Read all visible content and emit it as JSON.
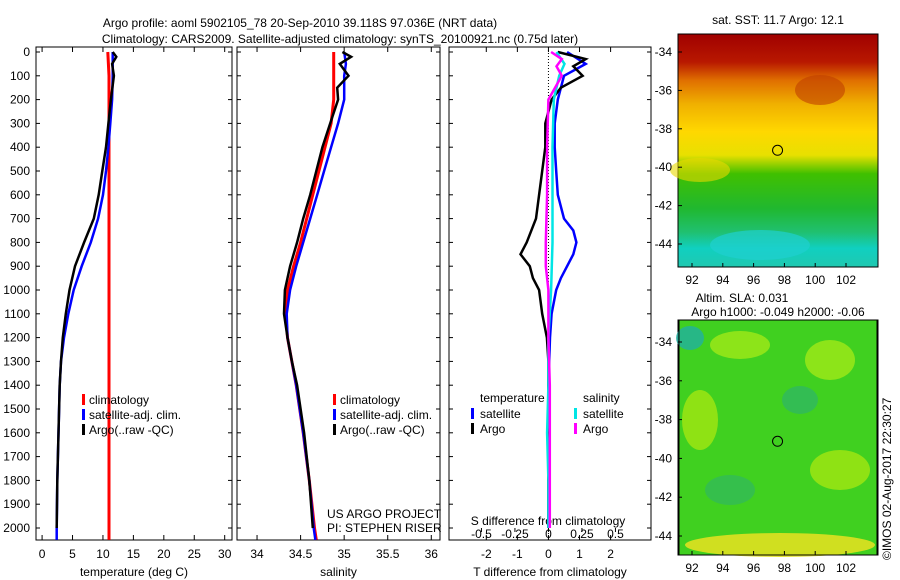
{
  "title_line1": "Argo profile: aoml 5902105_78 20-Sep-2010 39.118S 97.036E (NRT data)",
  "title_line2": "Climatology: CARS2009. Satellite-adjusted climatology: synTS_20100921.nc (0.75d later)",
  "project_line1": "US ARGO PROJECT",
  "project_line2": "PI: STEPHEN RISER",
  "credit": "©IMOS 02-Aug-2017 22:30:27",
  "colors": {
    "climatology": "#ff0000",
    "satellite": "#0000ff",
    "argo": "#000000",
    "sat_salinity": "#00e5e5",
    "argo_salinity": "#ff00ff"
  },
  "chart_data": [
    {
      "type": "line",
      "id": "temperature",
      "xlabel": "temperature (deg C)",
      "ylabel": "",
      "xlim": [
        -1,
        31.2
      ],
      "ylim": [
        2050,
        0
      ],
      "xticks": [
        "0",
        "5",
        "10",
        "15",
        "20",
        "25",
        "30"
      ],
      "xtick_values": [
        0,
        5,
        10,
        15,
        20,
        25,
        30
      ],
      "yticks": [
        "0",
        "100",
        "200",
        "300",
        "400",
        "500",
        "600",
        "700",
        "800",
        "900",
        "1000",
        "1100",
        "1200",
        "1300",
        "1400",
        "1500",
        "1600",
        "1700",
        "1800",
        "1900",
        "2000"
      ],
      "ytick_values": [
        0,
        100,
        200,
        300,
        400,
        500,
        600,
        700,
        800,
        900,
        1000,
        1100,
        1200,
        1300,
        1400,
        1500,
        1600,
        1700,
        1800,
        1900,
        2000
      ],
      "legend": [
        "climatology",
        "satellite-adj. clim.",
        "Argo(..raw -QC)"
      ],
      "series": [
        {
          "name": "climatology",
          "color": "#ff0000",
          "depth": [
            0,
            100,
            200,
            2050
          ],
          "values": [
            10.8,
            11.0,
            11.0,
            11.0
          ]
        },
        {
          "name": "satellite-adj. clim.",
          "color": "#0000ff",
          "depth": [
            0,
            100,
            200,
            300,
            400,
            500,
            600,
            700,
            800,
            900,
            1000,
            1100,
            1200,
            1300,
            1400,
            1600,
            1800,
            2000,
            2050
          ],
          "values": [
            11.6,
            11.6,
            11.5,
            11.2,
            10.9,
            10.5,
            10.0,
            9.2,
            8.0,
            6.5,
            5.2,
            4.3,
            3.6,
            3.1,
            2.9,
            2.7,
            2.5,
            2.4,
            2.4
          ]
        },
        {
          "name": "Argo(..raw -QC)",
          "color": "#000000",
          "depth": [
            0,
            20,
            50,
            100,
            200,
            300,
            400,
            500,
            600,
            700,
            800,
            900,
            1000,
            1100,
            1200,
            1300,
            1400,
            1600,
            1800,
            2000
          ],
          "values": [
            11.6,
            12.2,
            11.5,
            11.8,
            11.3,
            10.9,
            10.5,
            9.9,
            9.3,
            8.5,
            6.9,
            5.4,
            4.5,
            3.9,
            3.4,
            3.1,
            2.9,
            2.7,
            2.5,
            2.4
          ]
        }
      ]
    },
    {
      "type": "line",
      "id": "salinity",
      "xlabel": "salinity",
      "xlim": [
        33.77,
        36.1
      ],
      "ylim": [
        2050,
        0
      ],
      "xticks": [
        "34",
        "34.5",
        "35",
        "35.5",
        "36"
      ],
      "xtick_values": [
        34,
        34.5,
        35,
        35.5,
        36
      ],
      "legend": [
        "climatology",
        "satellite-adj. clim.",
        "Argo(..raw -QC)"
      ],
      "series": [
        {
          "name": "climatology",
          "color": "#ff0000",
          "depth": [
            0,
            200,
            300,
            400,
            500,
            600,
            700,
            800,
            900,
            1000,
            1100,
            1200,
            1400,
            1600,
            1800,
            2000,
            2050
          ],
          "values": [
            34.88,
            34.88,
            34.85,
            34.78,
            34.71,
            34.64,
            34.57,
            34.5,
            34.42,
            34.35,
            34.33,
            34.35,
            34.45,
            34.53,
            34.6,
            34.66,
            34.68
          ]
        },
        {
          "name": "satellite-adj. clim.",
          "color": "#0000ff",
          "depth": [
            0,
            50,
            100,
            200,
            300,
            400,
            500,
            600,
            700,
            800,
            900,
            1000,
            1100,
            1200,
            1400,
            1600,
            1800,
            2000,
            2050
          ],
          "values": [
            35.0,
            35.02,
            35.0,
            35.0,
            34.93,
            34.85,
            34.77,
            34.69,
            34.61,
            34.53,
            34.45,
            34.38,
            34.34,
            34.35,
            34.45,
            34.53,
            34.6,
            34.65,
            34.67
          ]
        },
        {
          "name": "Argo(..raw -QC)",
          "color": "#000000",
          "depth": [
            0,
            20,
            50,
            100,
            150,
            200,
            300,
            400,
            500,
            600,
            700,
            800,
            900,
            1000,
            1100,
            1200,
            1300,
            1400,
            1600,
            1800,
            2000
          ],
          "values": [
            34.98,
            35.08,
            34.95,
            35.05,
            34.92,
            34.93,
            34.84,
            34.75,
            34.68,
            34.61,
            34.53,
            34.46,
            34.38,
            34.32,
            34.31,
            34.35,
            34.4,
            34.46,
            34.54,
            34.6,
            34.64
          ]
        }
      ]
    },
    {
      "type": "line",
      "id": "differences",
      "xlabel": "T difference from climatology",
      "xlabel2": "S difference from climatology",
      "xlim": [
        -3.2,
        3.3
      ],
      "ylim": [
        2050,
        0
      ],
      "xticks": [
        "-2",
        "-1",
        "0",
        "1",
        "2"
      ],
      "xtick_values": [
        -2,
        -1,
        0,
        1,
        2
      ],
      "xticks2": [
        "-0.5",
        "-0.25",
        "0",
        "0.25",
        "0.5"
      ],
      "xtick_values2": [
        -0.5,
        -0.25,
        0,
        0.25,
        0.5
      ],
      "legend_temperature_title": "temperature",
      "legend_salinity_title": "salinity",
      "legend": [
        "satellite",
        "Argo",
        "satellite",
        "Argo"
      ],
      "series": [
        {
          "name": "T satellite",
          "color": "#0000ff",
          "depth": [
            0,
            50,
            100,
            200,
            300,
            400,
            500,
            600,
            700,
            750,
            800,
            850,
            900,
            950,
            1000,
            1100,
            1200,
            1400,
            1600,
            1800,
            2000
          ],
          "values": [
            0.6,
            1.2,
            0.5,
            0.3,
            0.2,
            0.2,
            0.25,
            0.3,
            0.5,
            0.8,
            0.9,
            0.8,
            0.6,
            0.4,
            0.25,
            0.1,
            0.05,
            0.0,
            0.0,
            0.0,
            0.0
          ]
        },
        {
          "name": "T Argo",
          "color": "#000000",
          "depth": [
            0,
            30,
            60,
            100,
            150,
            200,
            300,
            400,
            500,
            600,
            700,
            800,
            850,
            900,
            950,
            1000,
            1100,
            1200,
            1300,
            1400,
            1600,
            1800,
            2000
          ],
          "values": [
            0.3,
            1.2,
            0.8,
            1.1,
            0.4,
            0.1,
            -0.1,
            -0.1,
            -0.2,
            -0.3,
            -0.4,
            -0.7,
            -0.9,
            -0.6,
            -0.5,
            -0.3,
            -0.2,
            -0.05,
            0.0,
            0.0,
            0.0,
            0.0,
            0.0
          ]
        },
        {
          "name": "S satellite",
          "color": "#00e5e5",
          "scale": "S",
          "depth": [
            0,
            50,
            100,
            200,
            400,
            600,
            800,
            1000,
            1200,
            1400,
            1600,
            1800,
            2000
          ],
          "values": [
            0.06,
            0.12,
            0.08,
            0.04,
            0.03,
            0.03,
            0.03,
            0.02,
            0.0,
            0.0,
            -0.01,
            0.0,
            0.0
          ]
        },
        {
          "name": "S Argo",
          "color": "#ff00ff",
          "scale": "S",
          "depth": [
            0,
            30,
            60,
            100,
            200,
            400,
            600,
            800,
            900,
            1000,
            1200,
            1400,
            1600,
            1800,
            2000
          ],
          "values": [
            0.02,
            0.1,
            0.06,
            0.1,
            0.0,
            -0.01,
            -0.01,
            -0.02,
            -0.02,
            0.0,
            0.0,
            0.01,
            0.01,
            0.01,
            0.01
          ]
        }
      ]
    }
  ],
  "maps": [
    {
      "title": "sat. SST: 11.7 Argo: 12.1",
      "lat_ticks": [
        "-34",
        "-36",
        "-38",
        "-40",
        "-42",
        "-44"
      ],
      "lon_ticks": [
        "92",
        "94",
        "96",
        "98",
        "100",
        "102"
      ],
      "marker": {
        "lon": 97.036,
        "lat": -39.118
      }
    },
    {
      "title": "Altim. SLA: 0.031",
      "subtitle": "Argo h1000: -0.049 h2000: -0.06",
      "lat_ticks": [
        "-34",
        "-36",
        "-38",
        "-40",
        "-42",
        "-44"
      ],
      "lon_ticks": [
        "92",
        "94",
        "96",
        "98",
        "100",
        "102"
      ],
      "marker": {
        "lon": 97.036,
        "lat": -39.118
      }
    }
  ]
}
